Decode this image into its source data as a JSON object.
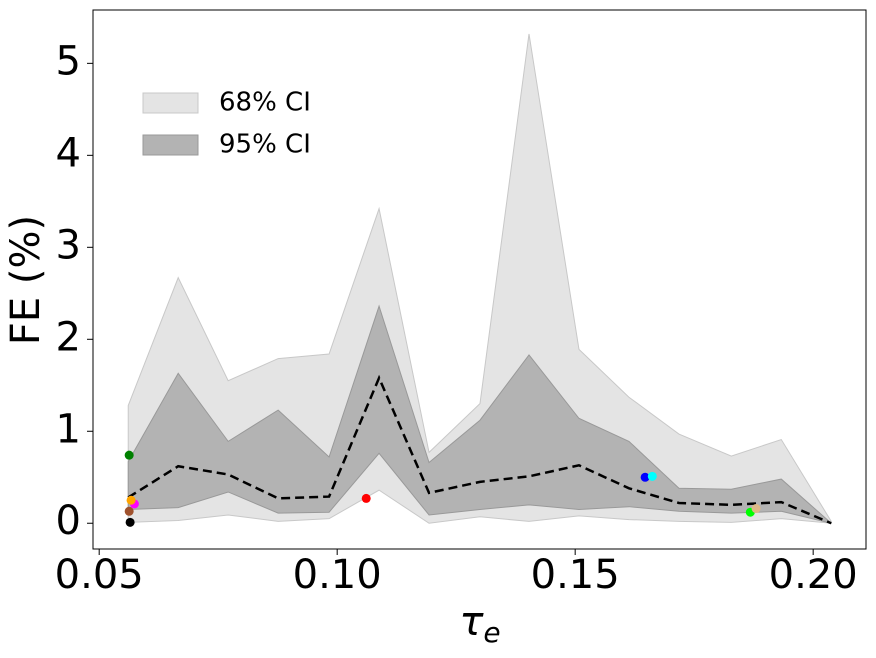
{
  "chart_data": {
    "type": "band",
    "x_label": {
      "symbol": "τ",
      "subscript": "e"
    },
    "y_label": "FE (%)",
    "x": [
      0.0561,
      0.0666,
      0.0771,
      0.0876,
      0.0983,
      0.1088,
      0.1193,
      0.13,
      0.1403,
      0.1508,
      0.1613,
      0.1718,
      0.1828,
      0.1933,
      0.2038
    ],
    "bands": [
      {
        "name": "68% CI",
        "color": "#e4e4e4",
        "edge": "#c8c8c8",
        "upper": [
          1.28,
          2.67,
          1.55,
          1.79,
          1.84,
          3.42,
          0.77,
          1.3,
          5.32,
          1.89,
          1.37,
          0.97,
          0.73,
          0.91,
          0.02
        ],
        "lower": [
          0.01,
          0.03,
          0.09,
          0.02,
          0.05,
          0.36,
          0.0,
          0.07,
          0.02,
          0.08,
          0.04,
          0.02,
          0.01,
          0.05,
          0.0
        ]
      },
      {
        "name": "95% CI",
        "color": "#b3b3b3",
        "edge": "#999999",
        "upper": [
          0.67,
          1.63,
          0.89,
          1.23,
          0.72,
          2.36,
          0.66,
          1.12,
          1.83,
          1.14,
          0.89,
          0.38,
          0.37,
          0.48,
          0.0
        ],
        "lower": [
          0.15,
          0.17,
          0.34,
          0.11,
          0.12,
          0.76,
          0.09,
          0.15,
          0.2,
          0.15,
          0.18,
          0.13,
          0.11,
          0.13,
          0.0
        ]
      }
    ],
    "median": {
      "color": "#000000",
      "dashed": true,
      "values": [
        0.28,
        0.62,
        0.53,
        0.27,
        0.29,
        1.58,
        0.33,
        0.45,
        0.51,
        0.63,
        0.38,
        0.22,
        0.2,
        0.23,
        0.0
      ]
    },
    "points": {
      "x": [
        0.0563,
        0.0563,
        0.0565,
        0.0574,
        0.0567,
        0.1061,
        0.1647,
        0.1662,
        0.1868,
        0.188
      ],
      "y": [
        0.74,
        0.13,
        0.01,
        0.21,
        0.25,
        0.27,
        0.5,
        0.51,
        0.12,
        0.16
      ],
      "colors": [
        "#008000",
        "#a0522d",
        "#000000",
        "#ff00ff",
        "#ffa500",
        "#ff0000",
        "#0000ff",
        "#00ffff",
        "#00ff00",
        "#deb887"
      ]
    },
    "xlim": [
      0.0487,
      0.2111
    ],
    "ylim": [
      -0.28,
      5.58
    ],
    "xticks": [
      {
        "value": 0.05,
        "label": "0.05"
      },
      {
        "value": 0.1,
        "label": "0.10"
      },
      {
        "value": 0.15,
        "label": "0.15"
      },
      {
        "value": 0.2,
        "label": "0.20"
      }
    ],
    "yticks": [
      0,
      1,
      2,
      3,
      4,
      5
    ],
    "legend": "upper left"
  }
}
